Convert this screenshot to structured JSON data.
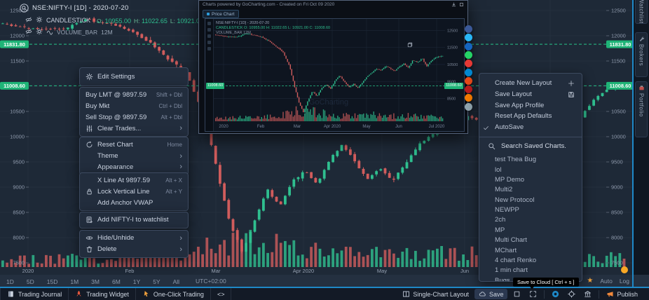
{
  "app": {
    "accent_blue": "#1e88c7",
    "bg": "#1e2937",
    "green": "#2fbf8f",
    "red": "#d05c5c",
    "badge_green": "#1fb477"
  },
  "header": {
    "symbol_title": "NSE:NIFTY-I [1D] - 2020-07-20",
    "study": "CANDLESTICK",
    "ohlc": [
      {
        "label": "O:",
        "value": "10955.00"
      },
      {
        "label": "H:",
        "value": "11022.65"
      },
      {
        "label": "L:",
        "value": "10921.00"
      },
      {
        "label": "C:",
        "value": "11008.60"
      }
    ],
    "volume_study": "VOLUME_BAR",
    "volume_value": "12M"
  },
  "context_menu": {
    "sections": [
      {
        "items": [
          {
            "icon": "gear-icon",
            "label": "Edit Settings"
          }
        ]
      },
      {
        "items": [
          {
            "label": "Buy LMT @ 9897.59",
            "shortcut": "Shift + Dbl",
            "flush": true
          },
          {
            "label": "Buy Mkt",
            "shortcut": "Ctrl + Dbl",
            "flush": true
          },
          {
            "label": "Sell Stop @ 9897.59",
            "shortcut": "Alt + Dbl",
            "flush": true
          },
          {
            "icon": "sliders-icon",
            "label": "Clear Trades...",
            "submenu": true
          }
        ]
      },
      {
        "items": [
          {
            "icon": "reset-icon",
            "label": "Reset Chart",
            "shortcut": "Home"
          },
          {
            "label": "Theme",
            "submenu": true
          },
          {
            "label": "Appearance",
            "submenu": true
          }
        ]
      },
      {
        "items": [
          {
            "label": "X Line At 9897.59",
            "shortcut": "Alt + X"
          },
          {
            "icon": "lock-icon",
            "label": "Lock Vertical Line",
            "shortcut": "Alt + Y"
          },
          {
            "label": "Add Anchor VWAP"
          }
        ]
      },
      {
        "items": [
          {
            "icon": "watchlist-add-icon",
            "label": "Add NIFTY-I to watchlist"
          }
        ]
      },
      {
        "items": [
          {
            "icon": "eye-icon",
            "label": "Hide/Unhide",
            "submenu": true
          },
          {
            "icon": "trash-icon",
            "label": "Delete",
            "submenu": true
          }
        ]
      }
    ]
  },
  "layout_menu": {
    "items": [
      {
        "label": "Create New Layout",
        "right_icon": "plus-icon"
      },
      {
        "label": "Save Layout",
        "right_icon": "floppy-icon"
      },
      {
        "label": "Save App Profile"
      },
      {
        "label": "Reset App Defaults"
      },
      {
        "label": "AutoSave",
        "left_icon": "check-icon"
      }
    ],
    "search_placeholder": "Search Saved Charts.",
    "saved_charts": [
      "test Thea Bug",
      "lol",
      "MP Demo",
      "Multi2",
      "New Protocol",
      "NEWPP",
      "2ch",
      "MP",
      "Multi Chart",
      "MChart",
      "4 chart Renko",
      "1 min chart",
      "Bugs"
    ]
  },
  "popup": {
    "title": "Charts powered by GoCharting.com  -  Created on Fri Oct 09 2020",
    "tab_label": "Price Chart",
    "symbol_title": "NSE:NIFTY-I [1D] - 2020-07-20",
    "ohlc_line": "CANDLESTICK  O: 10955.00  H: 11022.65  L: 10921.00  C: 11008.60",
    "volume_line": "VOLUME_BAR 12M",
    "watermark": "GoCharting",
    "price_badge": "11008.60",
    "months": [
      "2020",
      "Feb",
      "Mar",
      "Apr 2020",
      "May",
      "Jun",
      "Jul 2020"
    ],
    "price_ticks": [
      12500,
      11500,
      10500,
      9500,
      8500
    ]
  },
  "axes": {
    "price_ticks": [
      12500,
      12000,
      11500,
      10500,
      10000,
      9500,
      9000,
      8500,
      8000,
      7500
    ],
    "badges": [
      "11831.80",
      "11008.60"
    ],
    "months": [
      {
        "label": "2020",
        "x": 40
      },
      {
        "label": "Feb",
        "x": 185
      },
      {
        "label": "Mar",
        "x": 308
      },
      {
        "label": "Apr 2020",
        "x": 433
      },
      {
        "label": "May",
        "x": 545
      },
      {
        "label": "Jun",
        "x": 663
      }
    ]
  },
  "timeframe_bar": {
    "ranges": [
      "1D",
      "5D",
      "15D",
      "1M",
      "3M",
      "6M",
      "1Y",
      "5Y",
      "All"
    ],
    "timezone": "UTC+02:00",
    "auto_label": "Auto",
    "log_label": "Log"
  },
  "bottom_toolbar": {
    "left": [
      {
        "icon": "journal-icon",
        "label": "Trading Journal",
        "name": "trading-journal-button"
      },
      {
        "icon": "rocket-icon",
        "label": "Trading Widget",
        "name": "trading-widget-button"
      },
      {
        "icon": "pointer-icon",
        "label": "One-Click Trading",
        "name": "one-click-trading-button"
      },
      {
        "label": "<>",
        "name": "code-button"
      }
    ],
    "right": [
      {
        "icon": "layout-icon",
        "label": "Single-Chart Layout",
        "name": "single-chart-layout-button"
      },
      {
        "icon": "cloud-icon",
        "label": "Save",
        "name": "save-button",
        "highlight": true
      },
      {
        "icon": "square-icon",
        "name": "snapshot-button"
      },
      {
        "icon": "expand-icon",
        "name": "fullscreen-button"
      },
      {
        "sep": true
      },
      {
        "icon": "camera-icon",
        "name": "record-button"
      },
      {
        "icon": "target-icon",
        "name": "crosshair-button"
      },
      {
        "icon": "bank-icon",
        "name": "exchange-button"
      },
      {
        "sep": true
      },
      {
        "icon": "megaphone-icon",
        "label": "Publish",
        "name": "publish-button"
      }
    ]
  },
  "tooltip": "Save to Cloud [ Ctrl + s ]",
  "side_tabs": [
    "Watchlist",
    "Brokers",
    "Portfolio"
  ],
  "share_colors": [
    "#3b5998",
    "#29b6f6",
    "#1565c0",
    "#25d366",
    "#e53935",
    "#0288d1",
    "#e64a19",
    "#b71c1c",
    "#f57c00",
    "#90a4ae"
  ],
  "chart_data": {
    "type": "candlestick",
    "symbol": "NSE:NIFTY-I",
    "interval": "1D",
    "last_price": 11008.6,
    "level_line": 11831.8,
    "y_range": [
      7500,
      12500
    ],
    "price_anchors": [
      [
        0,
        12250
      ],
      [
        0.05,
        12150
      ],
      [
        0.1,
        12120
      ],
      [
        0.14,
        12320
      ],
      [
        0.18,
        12230
      ],
      [
        0.21,
        12100
      ],
      [
        0.24,
        11880
      ],
      [
        0.27,
        11560
      ],
      [
        0.3,
        11260
      ],
      [
        0.33,
        10400
      ],
      [
        0.35,
        9300
      ],
      [
        0.37,
        8300
      ],
      [
        0.39,
        7700
      ],
      [
        0.41,
        8350
      ],
      [
        0.43,
        8950
      ],
      [
        0.45,
        8620
      ],
      [
        0.47,
        9120
      ],
      [
        0.49,
        9320
      ],
      [
        0.51,
        9060
      ],
      [
        0.53,
        9560
      ],
      [
        0.55,
        9860
      ],
      [
        0.57,
        9480
      ],
      [
        0.59,
        9160
      ],
      [
        0.61,
        9360
      ],
      [
        0.63,
        9120
      ],
      [
        0.65,
        9460
      ],
      [
        0.67,
        9820
      ],
      [
        0.69,
        10020
      ],
      [
        0.71,
        10260
      ],
      [
        0.73,
        10140
      ],
      [
        0.75,
        10420
      ],
      [
        0.77,
        10290
      ],
      [
        0.79,
        10110
      ],
      [
        0.81,
        10360
      ],
      [
        0.83,
        10560
      ],
      [
        0.85,
        10310
      ],
      [
        0.87,
        10760
      ],
      [
        0.89,
        10610
      ],
      [
        0.91,
        10860
      ],
      [
        0.93,
        10380
      ],
      [
        0.95,
        10720
      ],
      [
        0.97,
        10920
      ],
      [
        1,
        11005
      ]
    ],
    "volume_anchors": [
      [
        0,
        14
      ],
      [
        0.2,
        17
      ],
      [
        0.28,
        22
      ],
      [
        0.33,
        34
      ],
      [
        0.36,
        46
      ],
      [
        0.4,
        52
      ],
      [
        0.45,
        40
      ],
      [
        0.5,
        30
      ],
      [
        0.55,
        27
      ],
      [
        0.62,
        25
      ],
      [
        0.7,
        28
      ],
      [
        0.78,
        23
      ],
      [
        0.85,
        24
      ],
      [
        0.92,
        20
      ],
      [
        1,
        17
      ]
    ]
  }
}
